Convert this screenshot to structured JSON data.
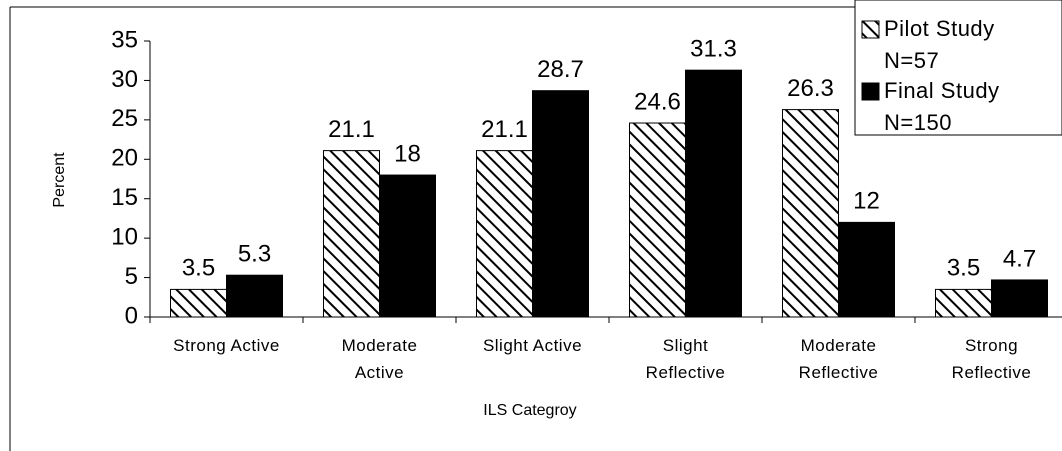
{
  "chart_data": {
    "type": "bar",
    "x_label": "ILS Categroy",
    "y_label": "Percent",
    "categories": [
      "Strong Active",
      "Moderate\nActive",
      "Slight Active",
      "Slight\nReflective",
      "Moderate\nReflective",
      "Strong\nReflective"
    ],
    "series": [
      {
        "name": "Pilot Study\nN=57",
        "color": "hatch",
        "values": [
          3.5,
          21.1,
          21.1,
          24.6,
          26.3,
          3.5
        ]
      },
      {
        "name": "Final Study\nN=150",
        "color": "#000000",
        "values": [
          5.3,
          18,
          28.7,
          31.3,
          12,
          4.7
        ]
      }
    ],
    "ylim": [
      0,
      35
    ],
    "yticks": [
      0,
      5,
      10,
      15,
      20,
      25,
      30,
      35
    ],
    "legend": "upper right"
  }
}
